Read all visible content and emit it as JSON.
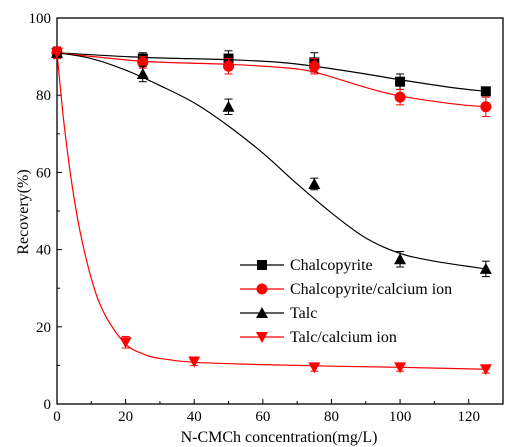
{
  "chart_data": {
    "type": "scatter",
    "xlabel": "N-CMCh concentration(mg/L)",
    "ylabel": "Recovery(%)",
    "xlim": [
      0,
      130
    ],
    "ylim": [
      0,
      100
    ],
    "x_ticks": [
      0,
      20,
      40,
      60,
      80,
      100,
      120
    ],
    "y_ticks": [
      0,
      20,
      40,
      60,
      80,
      100
    ],
    "legend_position": "center-right",
    "series": [
      {
        "name": "Chalcopyrite",
        "color": "#000000",
        "marker": "square",
        "x": [
          0,
          25,
          50,
          75,
          100,
          125
        ],
        "y": [
          91,
          89.5,
          89.5,
          88.5,
          83.5,
          81
        ],
        "error": [
          1.5,
          1.5,
          2,
          2.5,
          2,
          1
        ],
        "fit": [
          [
            0,
            91
          ],
          [
            25,
            89.8
          ],
          [
            50,
            89.2
          ],
          [
            65,
            88.5
          ],
          [
            75,
            87.5
          ],
          [
            90,
            85.5
          ],
          [
            100,
            84
          ],
          [
            115,
            82
          ],
          [
            125,
            81
          ]
        ]
      },
      {
        "name": "Chalcopyrite/calcium ion",
        "color": "#ff0000",
        "marker": "circle",
        "x": [
          0,
          25,
          50,
          75,
          100,
          125
        ],
        "y": [
          91,
          88.5,
          87.5,
          87.5,
          79.5,
          77
        ],
        "error": [
          1.5,
          1.5,
          2,
          2,
          2,
          2.5
        ],
        "fit": [
          [
            0,
            91
          ],
          [
            25,
            88.8
          ],
          [
            50,
            88
          ],
          [
            65,
            87.2
          ],
          [
            75,
            86
          ],
          [
            90,
            82
          ],
          [
            100,
            79.8
          ],
          [
            115,
            77.8
          ],
          [
            125,
            77
          ]
        ]
      },
      {
        "name": "Talc",
        "color": "#000000",
        "marker": "triangle-up",
        "x": [
          0,
          25,
          50,
          75,
          100,
          125
        ],
        "y": [
          91,
          85.5,
          77,
          57,
          37.5,
          35
        ],
        "error": [
          1.5,
          2,
          2,
          1.5,
          2,
          2
        ],
        "fit": [
          [
            0,
            91
          ],
          [
            10,
            89.5
          ],
          [
            20,
            86.5
          ],
          [
            30,
            82.5
          ],
          [
            40,
            78
          ],
          [
            50,
            72
          ],
          [
            60,
            65
          ],
          [
            70,
            57
          ],
          [
            80,
            49.5
          ],
          [
            90,
            43
          ],
          [
            100,
            39
          ],
          [
            110,
            37
          ],
          [
            125,
            35
          ]
        ]
      },
      {
        "name": "Talc/calcium ion",
        "color": "#ff0000",
        "marker": "triangle-down",
        "x": [
          0,
          20,
          40,
          75,
          100,
          125
        ],
        "y": [
          91,
          16,
          11,
          9.5,
          9.5,
          9
        ],
        "error": [
          1.5,
          1.5,
          1,
          1,
          1,
          1
        ],
        "fit": [
          [
            0,
            91
          ],
          [
            2,
            73
          ],
          [
            4,
            59
          ],
          [
            6,
            48
          ],
          [
            8,
            39.5
          ],
          [
            10,
            32.5
          ],
          [
            12,
            27
          ],
          [
            15,
            21.5
          ],
          [
            20,
            15.5
          ],
          [
            25,
            13
          ],
          [
            30,
            11.8
          ],
          [
            40,
            10.8
          ],
          [
            60,
            10.2
          ],
          [
            80,
            9.8
          ],
          [
            100,
            9.5
          ],
          [
            125,
            9
          ]
        ]
      }
    ]
  }
}
